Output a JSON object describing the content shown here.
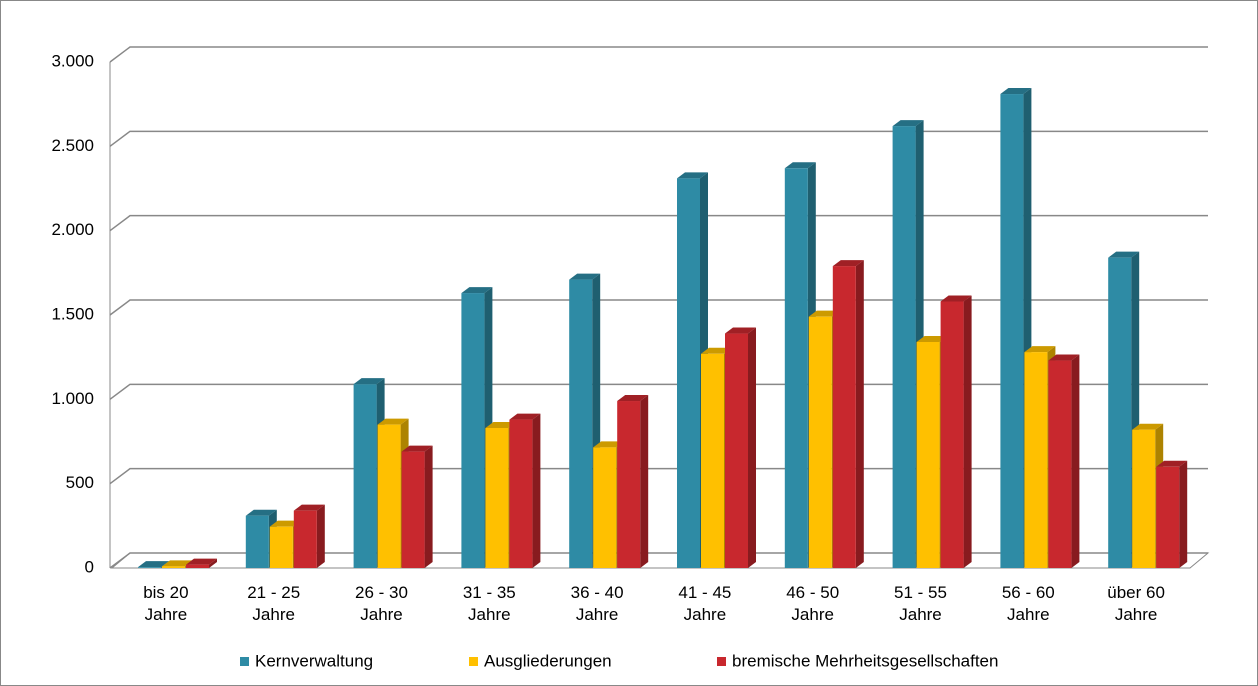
{
  "chart_data": {
    "type": "bar3d",
    "categories": [
      "bis 20 Jahre",
      "21 - 25 Jahre",
      "26 - 30 Jahre",
      "31 - 35 Jahre",
      "36 - 40 Jahre",
      "41 - 45 Jahre",
      "46 - 50 Jahre",
      "51 - 55 Jahre",
      "56 - 60 Jahre",
      "über 60 Jahre"
    ],
    "series": [
      {
        "name": "Kernverwaltung",
        "color": "#2e8ba5",
        "values": [
          5,
          310,
          1090,
          1630,
          1710,
          2310,
          2370,
          2620,
          2810,
          1840
        ]
      },
      {
        "name": "Ausgliederungen",
        "color": "#ffc000",
        "values": [
          10,
          245,
          850,
          830,
          715,
          1270,
          1490,
          1340,
          1280,
          820
        ]
      },
      {
        "name": "bremische Mehrheitsgesellschaften",
        "color": "#c8282e",
        "values": [
          20,
          340,
          690,
          880,
          990,
          1390,
          1790,
          1580,
          1230,
          600
        ]
      }
    ],
    "ylim": [
      0,
      3000
    ],
    "yticks": [
      0,
      500,
      {
        "value": 1000,
        "label": "1.000"
      },
      {
        "value": 1500,
        "label": "1.500"
      },
      {
        "value": 2000,
        "label": "2.000"
      },
      {
        "value": 2500,
        "label": "2.500"
      },
      {
        "value": 3000,
        "label": "3.000"
      }
    ],
    "grid": true,
    "legend": "bottom"
  }
}
